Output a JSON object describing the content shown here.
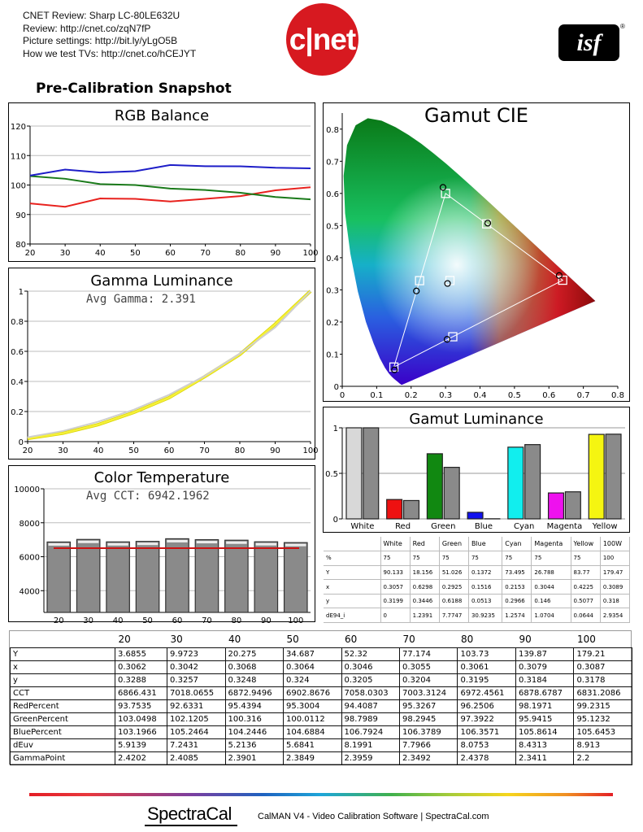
{
  "header": {
    "lines": [
      "CNET Review: Sharp LC-80LE632U",
      "Review: http://cnet.co/zqN7fP",
      "Picture settings: http://bit.ly/yLgO5B",
      "How we test TVs: http://cnet.co/hCEJYT"
    ],
    "cnet_logo": "c|net",
    "isf_logo": "isf",
    "isf_reg": "®",
    "snapshot_title": "Pre-Calibration Snapshot"
  },
  "colors": {
    "red": "#e8221e",
    "green": "#1a7a1a",
    "blue": "#1e1ec8",
    "yellow": "#f5f03a",
    "bar_grey": "#8a8a8a",
    "target_line": "#cc1111"
  },
  "chart_data": [
    {
      "id": "rgb_balance",
      "type": "line",
      "title": "RGB Balance",
      "x": [
        20,
        30,
        40,
        50,
        60,
        70,
        80,
        90,
        100
      ],
      "xticks": [
        "20",
        "30",
        "40",
        "50",
        "60",
        "70",
        "80",
        "90",
        "100"
      ],
      "ylim": [
        80,
        120
      ],
      "yticks": [
        "80",
        "90",
        "100",
        "110",
        "120"
      ],
      "grid": true,
      "series": [
        {
          "color": "#e8221e",
          "values": [
            93.7535,
            92.6331,
            95.4394,
            95.3004,
            94.4087,
            95.3267,
            96.2506,
            98.1971,
            99.2315
          ]
        },
        {
          "color": "#1a7a1a",
          "values": [
            103.0498,
            102.1205,
            100.316,
            100.0112,
            98.7989,
            98.2945,
            97.3922,
            95.9415,
            95.1232
          ]
        },
        {
          "color": "#1e1ec8",
          "values": [
            103.1966,
            105.2464,
            104.2446,
            104.6884,
            106.7924,
            106.3789,
            106.3571,
            105.8614,
            105.6453
          ]
        }
      ]
    },
    {
      "id": "gamma_luminance",
      "type": "line",
      "title": "Gamma Luminance",
      "subtitle": "Avg Gamma: 2.391",
      "x": [
        20,
        30,
        40,
        50,
        60,
        70,
        80,
        90,
        100
      ],
      "xticks": [
        "20",
        "30",
        "40",
        "50",
        "60",
        "70",
        "80",
        "90",
        "100"
      ],
      "ylim": [
        0,
        1
      ],
      "yticks": [
        "0",
        "0.2",
        "0.4",
        "0.6",
        "0.8",
        "1"
      ],
      "grid": true,
      "series": [
        {
          "color": "#f5f03a",
          "values": [
            0.0206,
            0.0557,
            0.1133,
            0.1936,
            0.2919,
            0.4306,
            0.5788,
            0.7803,
            1.0
          ]
        },
        {
          "color": "#cfcfcf",
          "values": [
            0.0291,
            0.0706,
            0.1327,
            0.2117,
            0.3112,
            0.4356,
            0.585,
            0.759,
            1.0
          ]
        }
      ]
    },
    {
      "id": "color_temperature",
      "type": "bar",
      "title": "Color Temperature",
      "subtitle": "Avg CCT: 6942.1962",
      "categories": [
        "20",
        "30",
        "40",
        "50",
        "60",
        "70",
        "80",
        "90",
        "100"
      ],
      "values": [
        6866.431,
        7018.0655,
        6872.9496,
        6902.8676,
        7058.0303,
        7003.3124,
        6972.4561,
        6878.6787,
        6831.2086
      ],
      "target": 6504,
      "ylim": [
        3200,
        10000
      ],
      "yticks": [
        "4000",
        "6000",
        "8000",
        "10000"
      ],
      "grid": true
    },
    {
      "id": "gamut_cie",
      "type": "scatter",
      "title": "Gamut CIE",
      "xlim": [
        0,
        0.8
      ],
      "ylim": [
        0,
        0.85
      ],
      "xticks": [
        "0",
        "0.1",
        "0.2",
        "0.3",
        "0.4",
        "0.5",
        "0.6",
        "0.7",
        "0.8"
      ],
      "yticks": [
        "0",
        "0.1",
        "0.2",
        "0.3",
        "0.4",
        "0.5",
        "0.6",
        "0.7",
        "0.8"
      ],
      "targets": [
        {
          "name": "Red",
          "x": 0.64,
          "y": 0.33
        },
        {
          "name": "Green",
          "x": 0.3,
          "y": 0.6
        },
        {
          "name": "Blue",
          "x": 0.15,
          "y": 0.06
        },
        {
          "name": "Cyan",
          "x": 0.2246,
          "y": 0.3287
        },
        {
          "name": "Magenta",
          "x": 0.3209,
          "y": 0.1542
        },
        {
          "name": "Yellow",
          "x": 0.4193,
          "y": 0.5053
        },
        {
          "name": "White",
          "x": 0.3127,
          "y": 0.329
        }
      ],
      "measured": [
        {
          "name": "Red",
          "x": 0.6298,
          "y": 0.3446
        },
        {
          "name": "Green",
          "x": 0.2925,
          "y": 0.6188
        },
        {
          "name": "Blue",
          "x": 0.1516,
          "y": 0.0513
        },
        {
          "name": "Cyan",
          "x": 0.2153,
          "y": 0.2966
        },
        {
          "name": "Magenta",
          "x": 0.3044,
          "y": 0.146
        },
        {
          "name": "Yellow",
          "x": 0.4225,
          "y": 0.5077
        },
        {
          "name": "White",
          "x": 0.3057,
          "y": 0.3199
        }
      ]
    },
    {
      "id": "gamut_luminance",
      "type": "bar",
      "title": "Gamut Luminance",
      "categories": [
        "White",
        "Red",
        "Green",
        "Blue",
        "Cyan",
        "Magenta",
        "Yellow"
      ],
      "series": [
        {
          "name": "target",
          "values": [
            1.0,
            0.2126,
            0.7152,
            0.0722,
            0.7874,
            0.2848,
            0.9278
          ]
        },
        {
          "name": "measured",
          "values": [
            1.0,
            0.2014,
            0.5659,
            0.0015,
            0.8155,
            0.2972,
            0.9299
          ]
        }
      ],
      "bar_colors": [
        "#d8d8d8",
        "#ee1111",
        "#118811",
        "#1111ee",
        "#11eeee",
        "#ee11ee",
        "#f5f511"
      ],
      "ylim": [
        0,
        1
      ],
      "yticks": [
        "0",
        "0.5",
        "1"
      ],
      "grid": true
    }
  ],
  "gamut_table": {
    "columns": [
      "",
      "White",
      "Red",
      "Green",
      "Blue",
      "Cyan",
      "Magenta",
      "Yellow",
      "100W"
    ],
    "rows": [
      [
        "%",
        "75",
        "75",
        "75",
        "75",
        "75",
        "75",
        "75",
        "100"
      ],
      [
        "Y",
        "90.133",
        "18.156",
        "51.026",
        "0.1372",
        "73.495",
        "26.788",
        "83.77",
        "179.47"
      ],
      [
        "x",
        "0.3057",
        "0.6298",
        "0.2925",
        "0.1516",
        "0.2153",
        "0.3044",
        "0.4225",
        "0.3089"
      ],
      [
        "y",
        "0.3199",
        "0.3446",
        "0.6188",
        "0.0513",
        "0.2966",
        "0.146",
        "0.5077",
        "0.318"
      ],
      [
        "dE94_i",
        "0",
        "1.2391",
        "7.7747",
        "30.9235",
        "1.2574",
        "1.0704",
        "0.0644",
        "2.9354"
      ]
    ]
  },
  "main_table": {
    "columns": [
      "",
      "20",
      "30",
      "40",
      "50",
      "60",
      "70",
      "80",
      "90",
      "100"
    ],
    "rows": [
      [
        "Y",
        "3.6855",
        "9.9723",
        "20.275",
        "34.687",
        "52.32",
        "77.174",
        "103.73",
        "139.87",
        "179.21"
      ],
      [
        "x",
        "0.3062",
        "0.3042",
        "0.3068",
        "0.3064",
        "0.3046",
        "0.3055",
        "0.3061",
        "0.3079",
        "0.3087"
      ],
      [
        "y",
        "0.3288",
        "0.3257",
        "0.3248",
        "0.324",
        "0.3205",
        "0.3204",
        "0.3195",
        "0.3184",
        "0.3178"
      ],
      [
        "CCT",
        "6866.431",
        "7018.0655",
        "6872.9496",
        "6902.8676",
        "7058.0303",
        "7003.3124",
        "6972.4561",
        "6878.6787",
        "6831.2086"
      ],
      [
        "RedPercent",
        "93.7535",
        "92.6331",
        "95.4394",
        "95.3004",
        "94.4087",
        "95.3267",
        "96.2506",
        "98.1971",
        "99.2315"
      ],
      [
        "GreenPercent",
        "103.0498",
        "102.1205",
        "100.316",
        "100.0112",
        "98.7989",
        "98.2945",
        "97.3922",
        "95.9415",
        "95.1232"
      ],
      [
        "BluePercent",
        "103.1966",
        "105.2464",
        "104.2446",
        "104.6884",
        "106.7924",
        "106.3789",
        "106.3571",
        "105.8614",
        "105.6453"
      ],
      [
        "dEuv",
        "5.9139",
        "7.2431",
        "5.2136",
        "5.6841",
        "8.1991",
        "7.7966",
        "8.0753",
        "8.4313",
        "8.913"
      ],
      [
        "GammaPoint",
        "2.4202",
        "2.4085",
        "2.3901",
        "2.3849",
        "2.3959",
        "2.3492",
        "2.4378",
        "2.3411",
        "2.2"
      ]
    ]
  },
  "footer": {
    "brand": "SpectraCal",
    "text": "CalMAN V4 - Video Calibration Software | SpectraCal.com"
  }
}
